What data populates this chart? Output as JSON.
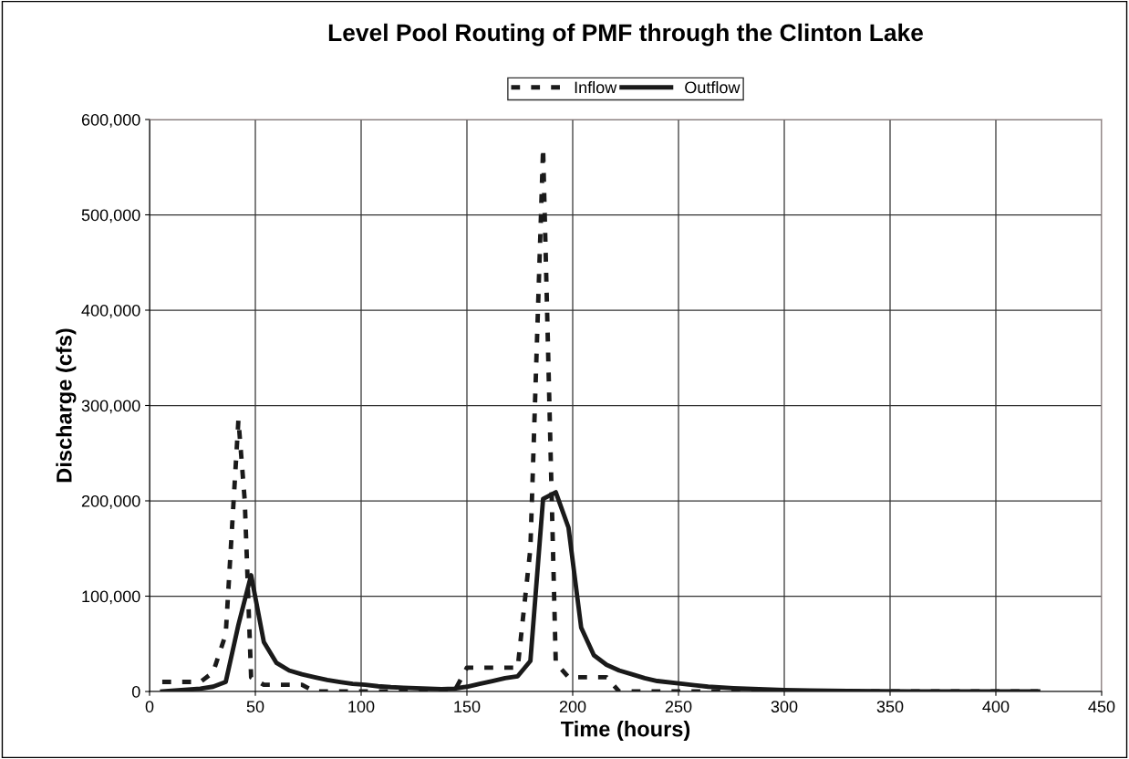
{
  "chart_data": {
    "type": "line",
    "title": "Level Pool Routing of PMF through the Clinton Lake",
    "xlabel": "Time (hours)",
    "ylabel": "Discharge (cfs)",
    "xlim": [
      0,
      450
    ],
    "xticks": [
      0,
      50,
      100,
      150,
      200,
      250,
      300,
      350,
      400,
      450
    ],
    "ylim": [
      0,
      600000
    ],
    "yticks": [
      {
        "value": 0,
        "label": "0"
      },
      {
        "value": 100000,
        "label": "100,000"
      },
      {
        "value": 200000,
        "label": "200,000"
      },
      {
        "value": 300000,
        "label": "300,000"
      },
      {
        "value": 400000,
        "label": "400,000"
      },
      {
        "value": 500000,
        "label": "500,000"
      },
      {
        "value": 600000,
        "label": "600,000"
      }
    ],
    "grid": true,
    "legend": "top",
    "marker": "none",
    "series": [
      {
        "name": "Inflow",
        "color": "#1a1a1a",
        "line_style": "dashed",
        "x": [
          6,
          12,
          18,
          24,
          30,
          36,
          42,
          45,
          48,
          54,
          60,
          66,
          72,
          78,
          90,
          120,
          144,
          150,
          156,
          162,
          168,
          174,
          180,
          186,
          189,
          192,
          198,
          204,
          210,
          216,
          222,
          240,
          300,
          420
        ],
        "values": [
          10000,
          10000,
          10000,
          10000,
          20000,
          60000,
          285000,
          200000,
          15000,
          7000,
          7000,
          7000,
          7000,
          0,
          0,
          0,
          0,
          25000,
          25000,
          25000,
          25000,
          25000,
          150000,
          570000,
          300000,
          30000,
          15000,
          15000,
          15000,
          15000,
          0,
          0,
          0,
          0
        ]
      },
      {
        "name": "Outflow",
        "color": "#1a1a1a",
        "line_style": "solid",
        "x": [
          6,
          12,
          18,
          24,
          30,
          36,
          42,
          48,
          54,
          60,
          66,
          72,
          78,
          84,
          90,
          96,
          102,
          108,
          114,
          120,
          126,
          132,
          138,
          144,
          150,
          156,
          162,
          168,
          174,
          180,
          186,
          192,
          198,
          204,
          210,
          216,
          222,
          228,
          234,
          240,
          252,
          264,
          276,
          288,
          300,
          312,
          330,
          360,
          420
        ],
        "values": [
          0,
          1000,
          2000,
          3000,
          5000,
          10000,
          70000,
          122000,
          52000,
          30000,
          22000,
          18000,
          15000,
          12000,
          10000,
          8000,
          7000,
          5500,
          4500,
          4000,
          3500,
          3000,
          2500,
          3000,
          5000,
          8000,
          11000,
          14000,
          16000,
          32000,
          202000,
          209000,
          172000,
          67000,
          38000,
          28000,
          22000,
          18000,
          14000,
          11000,
          8000,
          5000,
          3500,
          2500,
          1500,
          1000,
          500,
          0,
          0
        ]
      }
    ]
  }
}
